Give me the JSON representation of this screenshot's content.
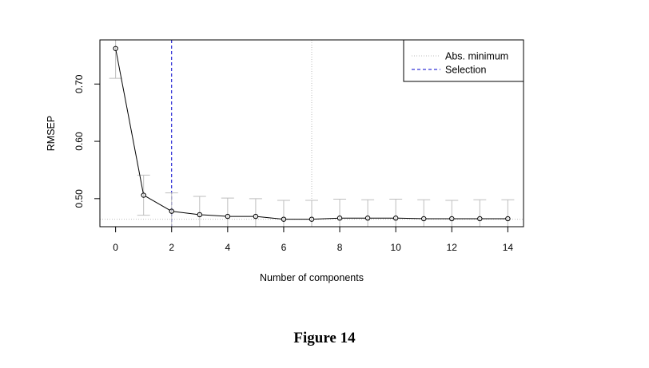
{
  "figure": {
    "caption": "Figure 14"
  },
  "chart_data": {
    "type": "line",
    "xlabel": "Number of components",
    "ylabel": "RMSEP",
    "xlim": [
      -0.56,
      14.56
    ],
    "ylim": [
      0.451,
      0.777
    ],
    "x_ticks": [
      0,
      2,
      4,
      6,
      8,
      10,
      12,
      14
    ],
    "y_ticks": [
      0.5,
      0.6,
      0.7
    ],
    "y_tick_labels": [
      "0.50",
      "0.60",
      "0.70"
    ],
    "x": [
      0,
      1,
      2,
      3,
      4,
      5,
      6,
      7,
      8,
      9,
      10,
      11,
      12,
      13,
      14
    ],
    "series": [
      {
        "values": [
          0.762,
          0.506,
          0.478,
          0.472,
          0.469,
          0.469,
          0.464,
          0.464,
          0.466,
          0.466,
          0.466,
          0.465,
          0.465,
          0.465,
          0.465
        ],
        "error_upper": [
          0.814,
          0.541,
          0.51,
          0.504,
          0.501,
          0.5,
          0.497,
          0.497,
          0.499,
          0.498,
          0.499,
          0.498,
          0.497,
          0.498,
          0.498
        ],
        "error_lower": [
          0.71,
          0.471,
          0.446,
          0.44,
          0.437,
          0.438,
          0.431,
          0.431,
          0.433,
          0.434,
          0.433,
          0.432,
          0.433,
          0.432,
          0.432
        ],
        "line_color": "#000000",
        "errorbar_color": "#bebebe"
      }
    ],
    "reference_lines": {
      "abs_minimum": {
        "label": "Abs. minimum",
        "x": 7,
        "y": 0.464,
        "color": "#bebebe"
      },
      "selection": {
        "label": "Selection",
        "x": 2,
        "color": "#0000cc"
      }
    },
    "legend": {
      "placement": "top-right",
      "entries": [
        "Abs. minimum",
        "Selection"
      ]
    },
    "grid": false
  }
}
